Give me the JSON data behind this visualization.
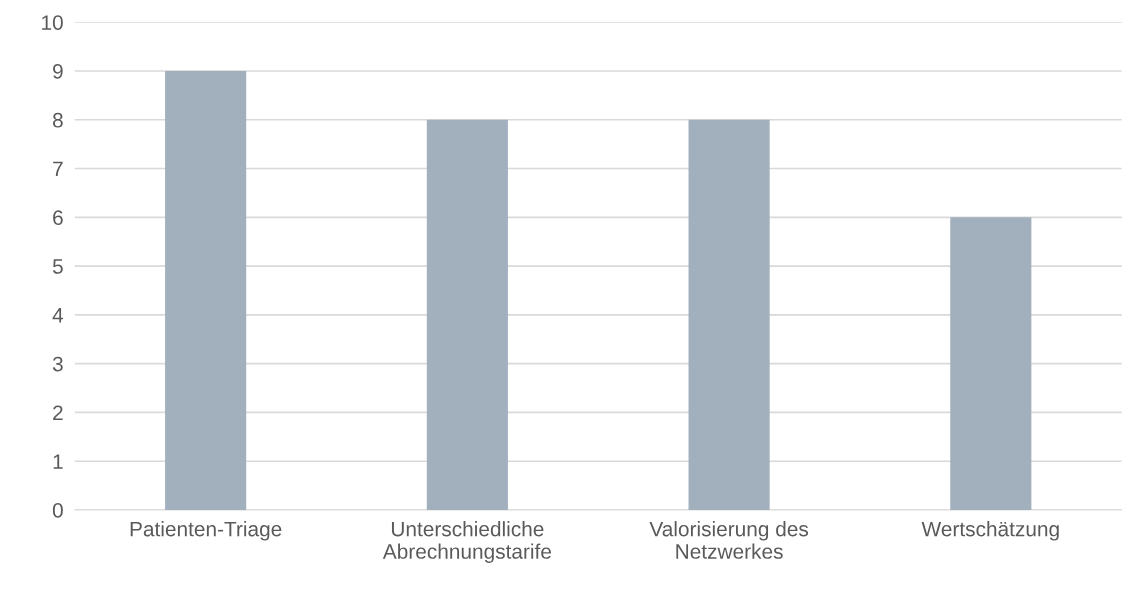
{
  "chart_data": {
    "type": "bar",
    "categories": [
      "Patienten-Triage",
      "Unterschiedliche\nAbrechnungstarife",
      "Valorisierung des\nNetzwerkes",
      "Wertschätzung"
    ],
    "values": [
      9,
      8,
      8,
      6
    ],
    "color": "#a2b0be",
    "ylim": [
      0,
      10
    ],
    "yticks": [
      0,
      1,
      2,
      3,
      4,
      5,
      6,
      7,
      8,
      9,
      10
    ],
    "grid": "y"
  }
}
